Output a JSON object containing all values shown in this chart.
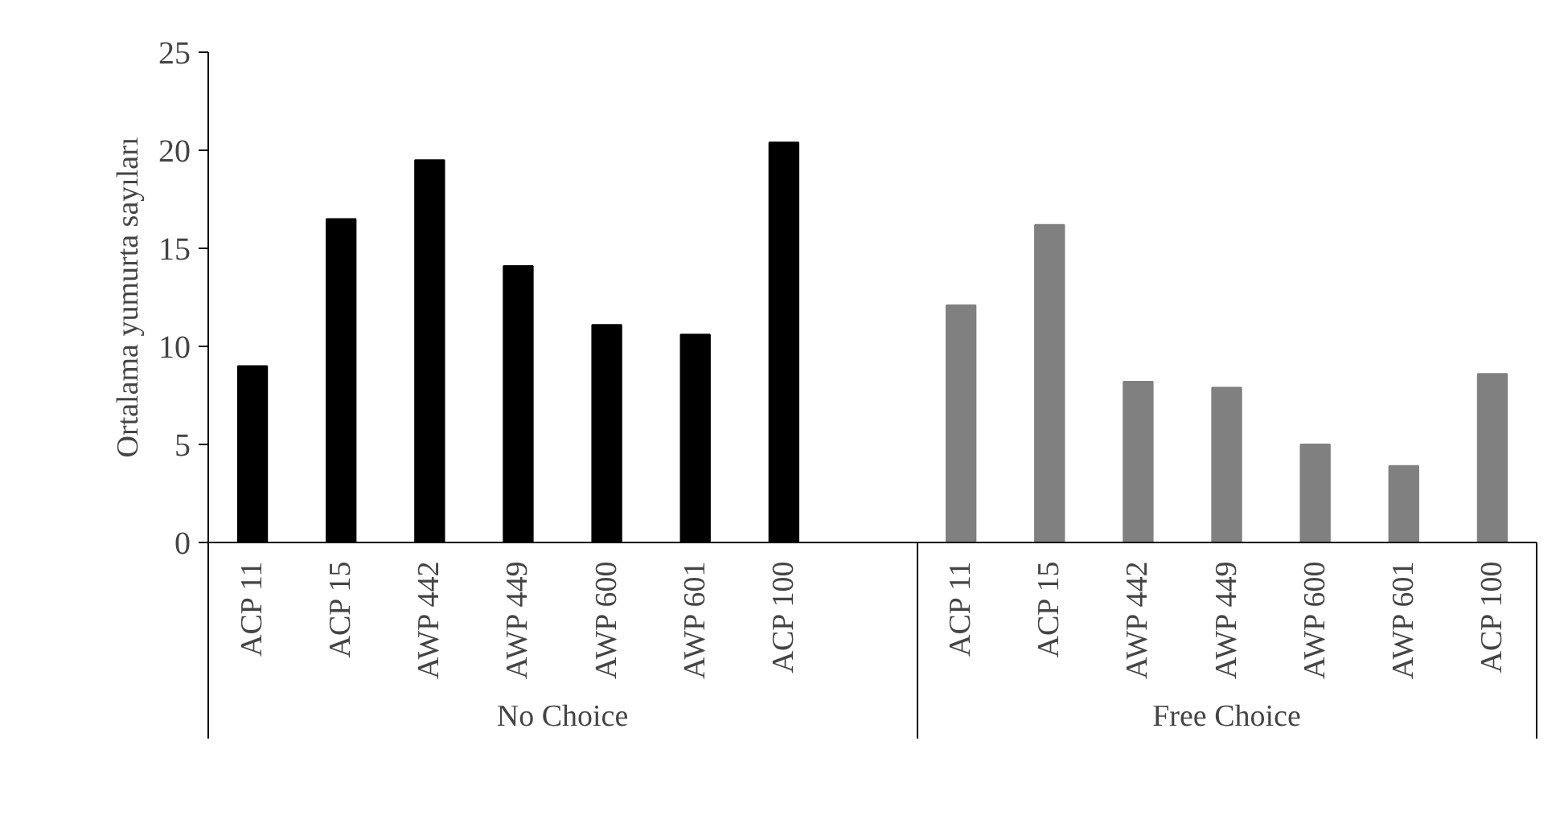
{
  "chart_data": {
    "type": "bar",
    "ylabel": "Ortalama yumurta sayıları",
    "categories": [
      "ACP 11",
      "ACP 15",
      "AWP 442",
      "AWP 449",
      "AWP 600",
      "AWP 601",
      "ACP 100",
      null,
      "ACP 11",
      "ACP 15",
      "AWP 442",
      "AWP 449",
      "AWP 600",
      "AWP 601",
      "ACP 100"
    ],
    "series": [
      {
        "color": "#000000",
        "values": [
          9.0,
          16.5,
          19.5,
          14.1,
          11.1,
          10.6,
          20.4,
          null,
          null,
          null,
          null,
          null,
          null,
          null,
          null
        ]
      },
      {
        "color": "#808080",
        "values": [
          null,
          null,
          null,
          null,
          null,
          null,
          null,
          null,
          12.1,
          16.2,
          8.2,
          7.9,
          5.0,
          3.9,
          8.6
        ]
      }
    ],
    "annotations": [
      "No Choice",
      "Free Choice"
    ],
    "ylim": [
      0,
      25
    ],
    "yticks": [
      0,
      5,
      10,
      15,
      20,
      25
    ],
    "grid": false
  }
}
